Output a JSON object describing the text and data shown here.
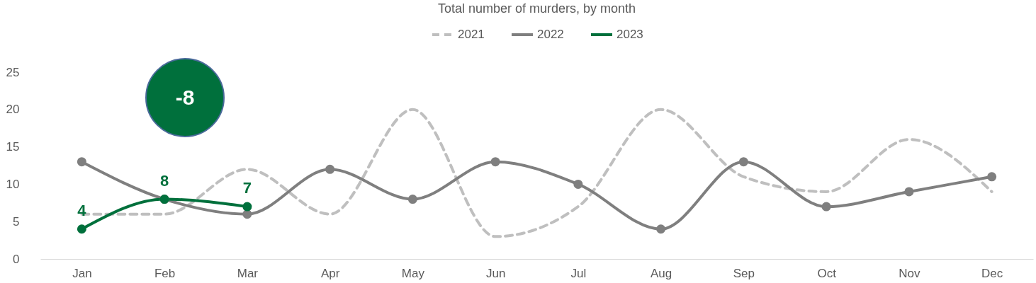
{
  "chart_data": {
    "type": "line",
    "title": "Total number of murders, by month",
    "categories": [
      "Jan",
      "Feb",
      "Mar",
      "Apr",
      "May",
      "Jun",
      "Jul",
      "Aug",
      "Sep",
      "Oct",
      "Nov",
      "Dec"
    ],
    "series": [
      {
        "name": "2021",
        "color": "#bfbfbf",
        "line_style": "dashed",
        "marker": "none",
        "values": [
          6,
          6,
          12,
          6,
          20,
          3,
          7,
          20,
          11,
          9,
          16,
          9
        ]
      },
      {
        "name": "2022",
        "color": "#7f7f7f",
        "line_style": "solid",
        "marker": "circle",
        "values": [
          13,
          8,
          6,
          12,
          8,
          13,
          10,
          4,
          13,
          7,
          9,
          11
        ]
      },
      {
        "name": "2023",
        "color": "#00703c",
        "line_style": "solid",
        "marker": "circle",
        "data_labels": true,
        "values": [
          4,
          8,
          7,
          null,
          null,
          null,
          null,
          null,
          null,
          null,
          null,
          null
        ]
      }
    ],
    "ylim": [
      0,
      25
    ],
    "yticks": [
      0,
      5,
      10,
      15,
      20,
      25
    ],
    "grid": false,
    "legend": "top",
    "annotations": [
      "-8"
    ]
  }
}
